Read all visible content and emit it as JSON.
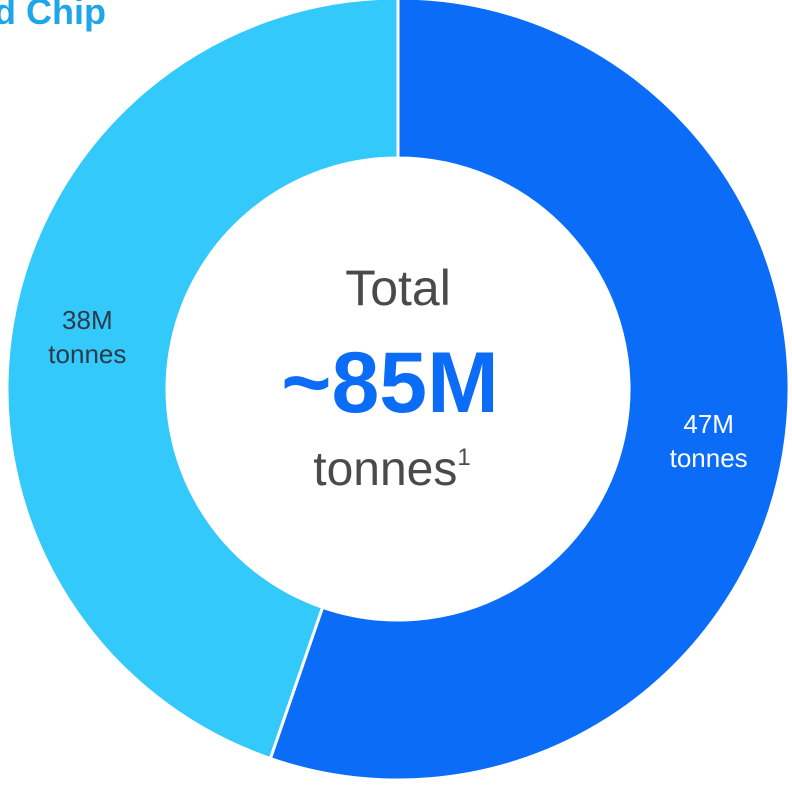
{
  "title": "d Chip",
  "center": {
    "label": "Total",
    "value": "~85M",
    "unit": "tonnes",
    "footnote_marker": "1"
  },
  "colors": {
    "series_a": "#0a6cf7",
    "series_b": "#33c9fb",
    "center_value": "#0a6cf7",
    "center_text": "#4a4a4a",
    "title": "#1ea6e8",
    "separator": "#ffffff"
  },
  "chart_data": {
    "type": "pie",
    "donut": true,
    "title": "d Chip",
    "categories": [
      "47M tonnes",
      "38M tonnes"
    ],
    "values": [
      47,
      38
    ],
    "unit": "M tonnes",
    "labels": [
      {
        "line1": "47M",
        "line2": "tonnes"
      },
      {
        "line1": "38M",
        "line2": "tonnes"
      }
    ],
    "total_label": "~85M tonnes"
  }
}
